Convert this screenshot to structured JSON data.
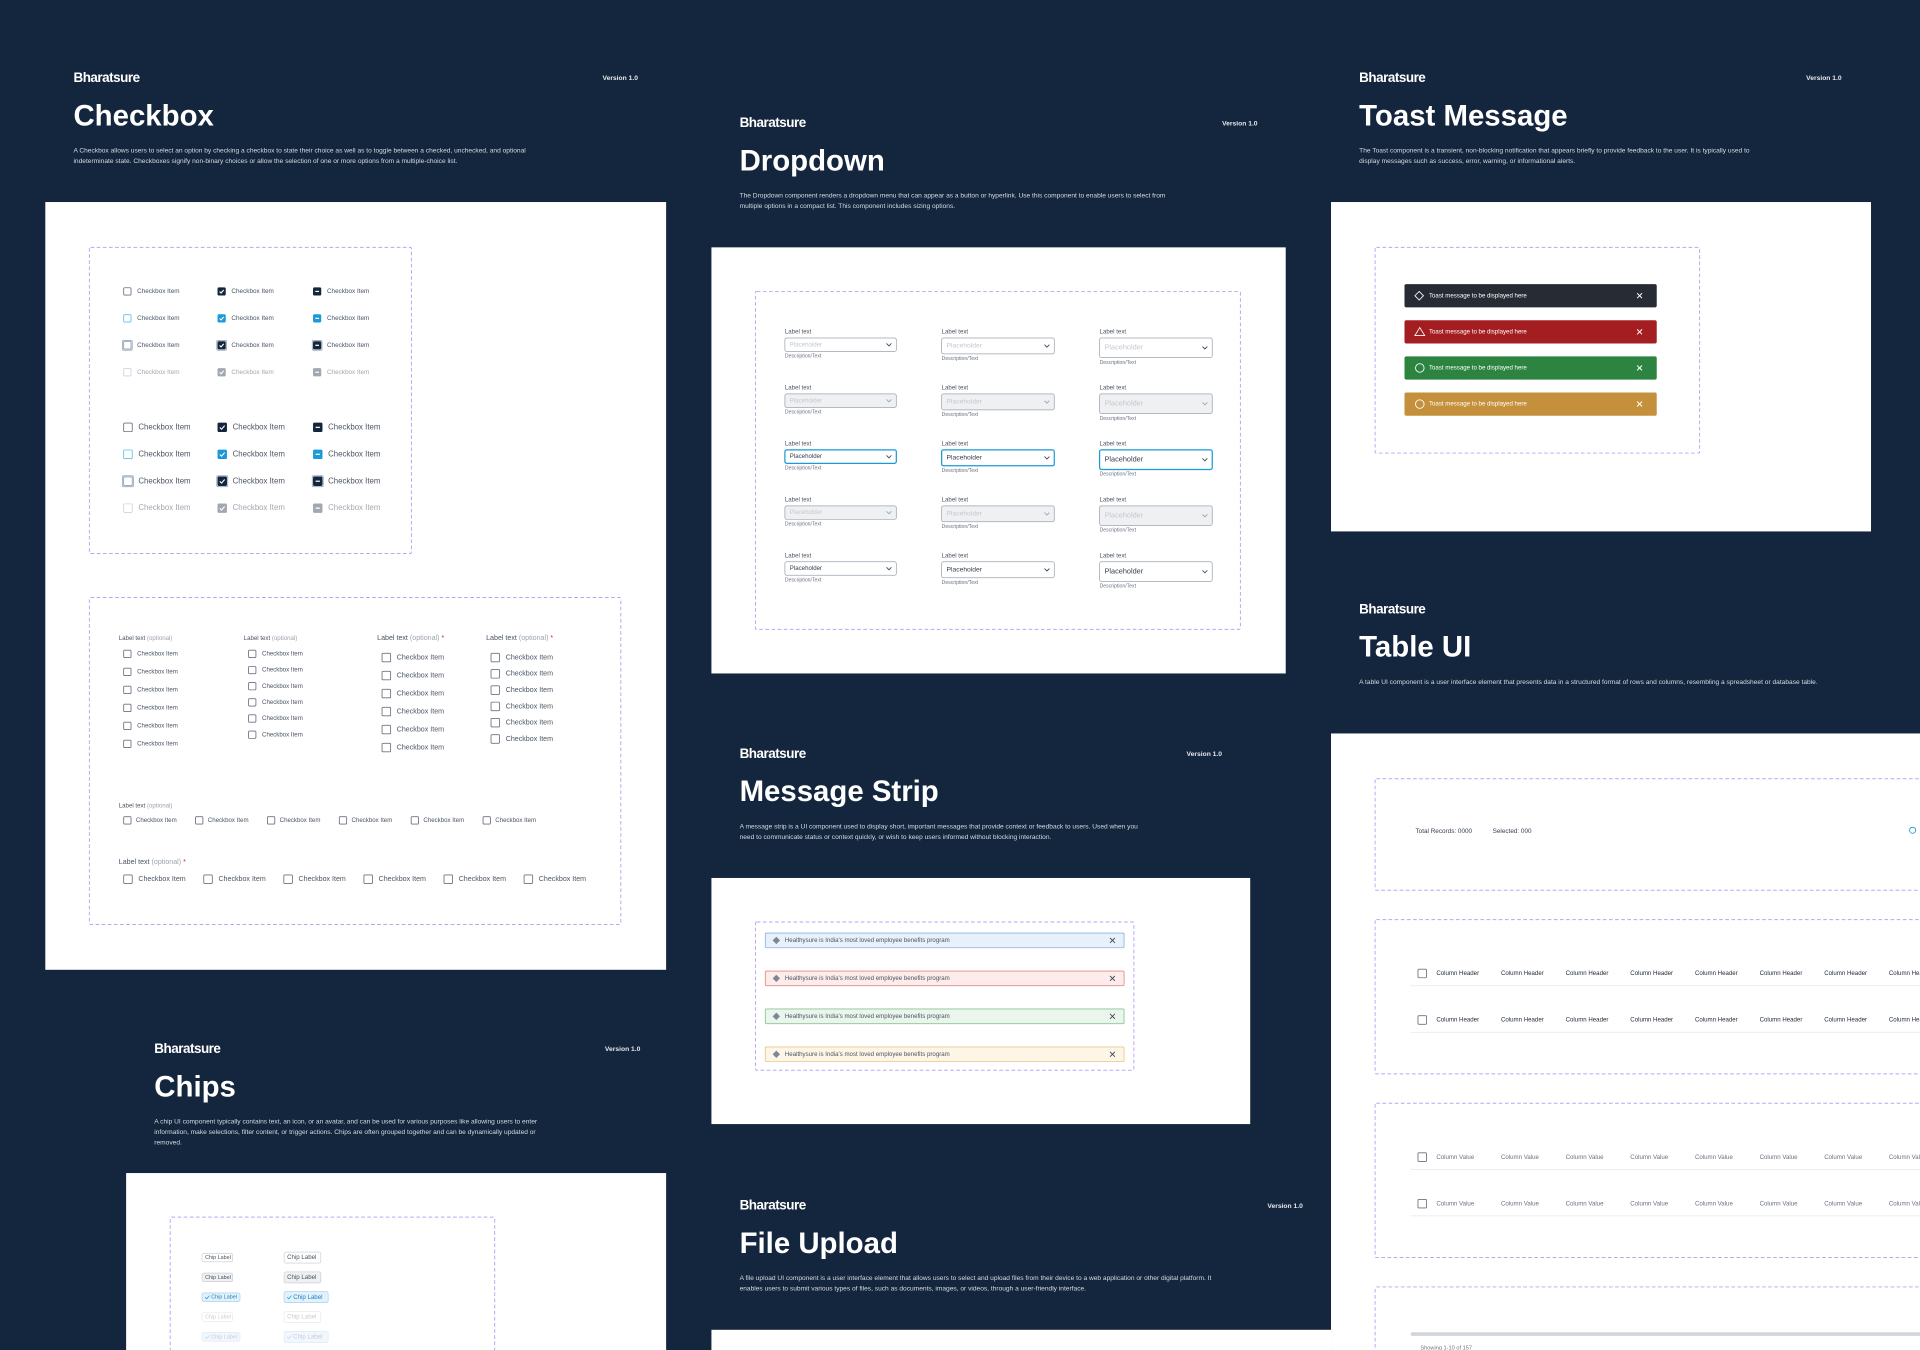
{
  "sections": [
    {
      "brand": "Bharatsure",
      "version": "Version 1.0",
      "title": "Checkbox",
      "description": [
        "A Checkbox allows users to select an option by checking a checkbox to state their choice as well as to toggle between a checked, unchecked, and optional",
        "indeterminate state. Checkboxes signify non-binary choices or allow the selection of one or more options from a multiple-choice list."
      ]
    },
    {
      "brand": "Bharatsure",
      "version": "Version 1.0",
      "title": "Dropdown",
      "description": [
        "The Dropdown component renders a dropdown menu that can appear as a button or hyperlink. Use this component to enable users to select from",
        "multiple options in a compact list. This component includes sizing options."
      ]
    },
    {
      "brand": "Bharatsure",
      "version": "Version 1.0",
      "title": "Toast Message",
      "description": [
        "The Toast component is a transient, non-blocking notification that appears briefly to provide feedback to the user. It is typically used to",
        "display messages such as success, error, warning, or informational alerts."
      ]
    },
    {
      "brand": "Bharatsure",
      "title": "Table UI",
      "description": [
        "A table UI component is a user interface element that presents data in a structured format of rows and columns, resembling a spreadsheet or database table."
      ]
    },
    {
      "brand": "Bharatsure",
      "version": "Version 1.0",
      "title": "Message Strip",
      "description": [
        "A message strip is a UI component used to display short, important messages that provide context or feedback to users. Used when you",
        "need to communicate status or context quickly, or wish to keep users informed without blocking interaction."
      ]
    },
    {
      "brand": "Bharatsure",
      "version": "Version 1.0",
      "title": "Chips",
      "description": [
        "A chip UI component typically contains text, an icon, or an avatar, and can be used for various purposes like allowing users to enter",
        "information, make selections, filter content, or trigger actions. Chips are often grouped together and can be dynamically updated or",
        "removed."
      ]
    },
    {
      "brand": "Bharatsure",
      "version": "Version 1.0",
      "title": "File Upload",
      "description": [
        "A file upload UI component is a user interface element that allows users to select and upload files from their device to a web application or other digital platform. It",
        "enables users to submit various types of files, such as documents, images, or videos, through a user-friendly interface."
      ]
    }
  ],
  "checkbox": {
    "item": "Checkbox Item",
    "label": "Label text",
    "optional": "(optional)",
    "required": "*"
  },
  "dropdown": {
    "label": "Label text",
    "placeholder": "Placeholder",
    "description": "Description/Text"
  },
  "toast": {
    "message": "Toast message to be displayed here"
  },
  "message_strip": {
    "message": "Healthysure is India's most loved employee benefits program"
  },
  "table": {
    "total": "Total Records: 0000",
    "selected": "Selected: 000",
    "header": "Column Header",
    "value": "Column Value",
    "footer": "Showing 1-10 of 157"
  },
  "chips": {
    "label": "Chip Label"
  }
}
